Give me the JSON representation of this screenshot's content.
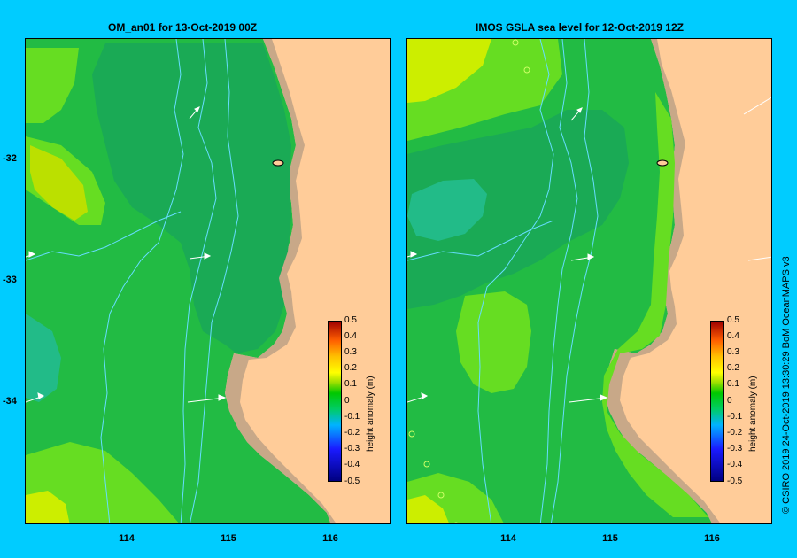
{
  "left_panel": {
    "title": "OM_an01  for 13-Oct-2019 00Z"
  },
  "right_panel": {
    "title": "IMOS GSLA sea level  for 12-Oct-2019 12Z"
  },
  "axes": {
    "lat_labels": [
      "-32",
      "-33",
      "-34"
    ],
    "lon_labels": [
      "114",
      "115",
      "116"
    ]
  },
  "colorbar": {
    "title": "height anomaly (m)",
    "ticks": [
      "0.5",
      "0.4",
      "0.3",
      "0.2",
      "0.1",
      "0",
      "-0.1",
      "-0.2",
      "-0.3",
      "-0.4",
      "-0.5"
    ]
  },
  "credit": "© CSIRO 2019   24-Oct-2019 13:30:29 BoM OceanMAPS v3",
  "colors": {
    "background": "#00ccff",
    "land": "#ffcc99",
    "shelf": "#c8a888",
    "ocean_mid": "#22bb44",
    "ocean_dark": "#1aaa55",
    "ocean_light": "#66dd22",
    "yellow": "#ccee00",
    "teal": "#22bb88",
    "bathy": "#66ddff"
  }
}
